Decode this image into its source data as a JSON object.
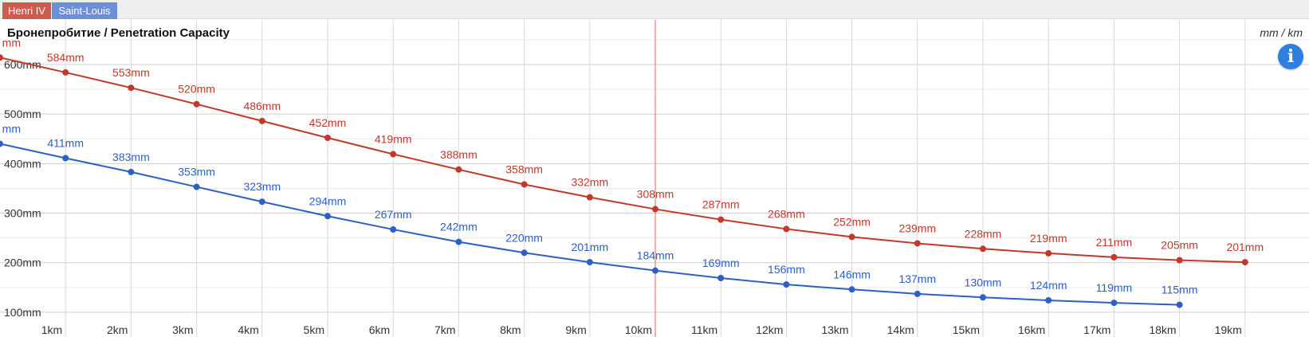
{
  "tabs": [
    {
      "label": "Henri IV",
      "color": "#cd5c4e"
    },
    {
      "label": "Saint-Louis",
      "color": "#6d8fd8"
    }
  ],
  "info_icon": "info-icon",
  "chart_data": {
    "type": "line",
    "title": "Бронепробитие / Penetration Capacity",
    "unit_label": "mm / km",
    "x": [
      0,
      1,
      2,
      3,
      4,
      5,
      6,
      7,
      8,
      9,
      10,
      11,
      12,
      13,
      14,
      15,
      16,
      17,
      18,
      19
    ],
    "x_ticks": [
      "1km",
      "2km",
      "3km",
      "4km",
      "5km",
      "6km",
      "7km",
      "8km",
      "9km",
      "10km",
      "11km",
      "12km",
      "13km",
      "14km",
      "15km",
      "16km",
      "17km",
      "18km",
      "19km"
    ],
    "y_ticks": [
      "100mm",
      "200mm",
      "300mm",
      "400mm",
      "500mm",
      "600mm"
    ],
    "ylim": [
      50,
      690
    ],
    "xlim": [
      0,
      20
    ],
    "grid": true,
    "marker_x": 10,
    "series": [
      {
        "name": "Henri IV",
        "color": "#c0392b",
        "x": [
          0,
          1,
          2,
          3,
          4,
          5,
          6,
          7,
          8,
          9,
          10,
          11,
          12,
          13,
          14,
          15,
          16,
          17,
          18,
          19
        ],
        "values": [
          614,
          584,
          553,
          520,
          486,
          452,
          419,
          388,
          358,
          332,
          308,
          287,
          268,
          252,
          239,
          228,
          219,
          211,
          205,
          201
        ],
        "labels": [
          "mm",
          "584mm",
          "553mm",
          "520mm",
          "486mm",
          "452mm",
          "419mm",
          "388mm",
          "358mm",
          "332mm",
          "308mm",
          "287mm",
          "268mm",
          "252mm",
          "239mm",
          "228mm",
          "219mm",
          "211mm",
          "205mm",
          "201mm"
        ]
      },
      {
        "name": "Saint-Louis",
        "color": "#2e5fc4",
        "x": [
          0,
          1,
          2,
          3,
          4,
          5,
          6,
          7,
          8,
          9,
          10,
          11,
          12,
          13,
          14,
          15,
          16,
          17,
          18
        ],
        "values": [
          440,
          411,
          383,
          353,
          323,
          294,
          267,
          242,
          220,
          201,
          184,
          169,
          156,
          146,
          137,
          130,
          124,
          119,
          115
        ],
        "labels": [
          "mm",
          "411mm",
          "383mm",
          "353mm",
          "323mm",
          "294mm",
          "267mm",
          "242mm",
          "220mm",
          "201mm",
          "184mm",
          "169mm",
          "156mm",
          "146mm",
          "137mm",
          "130mm",
          "124mm",
          "119mm",
          "115mm"
        ]
      }
    ]
  }
}
